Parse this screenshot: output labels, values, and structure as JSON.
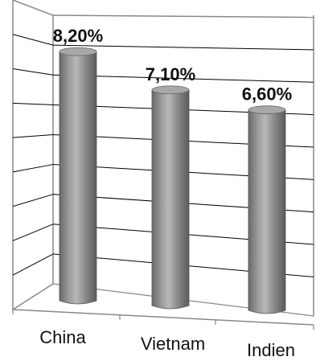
{
  "chart_data": {
    "type": "bar",
    "style": "3d-cylinder",
    "title": "",
    "xlabel": "",
    "ylabel": "",
    "categories": [
      "China",
      "Vietnam",
      "Indien"
    ],
    "values": [
      8.2,
      7.1,
      6.6
    ],
    "data_labels": [
      "8,20%",
      "7,10%",
      "6,60%"
    ],
    "ylim": [
      0,
      9
    ],
    "grid": true,
    "colors": {
      "bar": "#8a8a8a",
      "bar_dark": "#5e5e5e",
      "bar_light": "#b4b4b4",
      "grid": "#000000",
      "wall": "#888888"
    }
  }
}
